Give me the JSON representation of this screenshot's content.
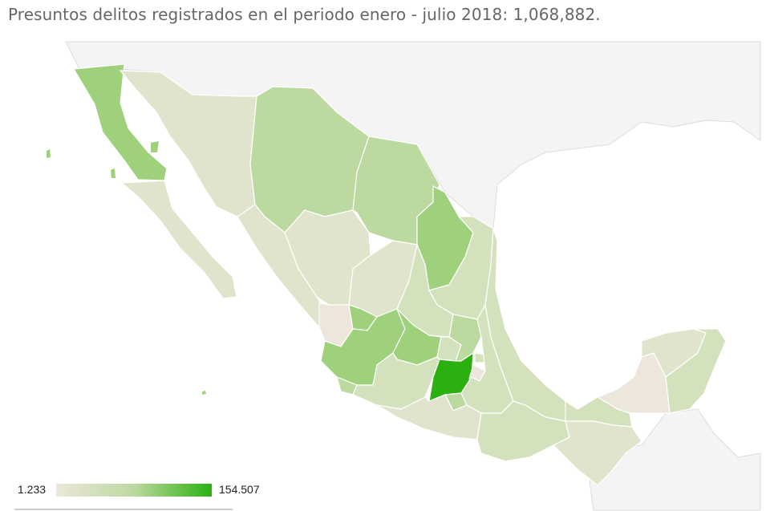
{
  "title": "Presuntos delitos registrados en el periodo enero - julio 2018: 1,068,882.",
  "legend": {
    "min_label": "1.233",
    "max_label": "154.507",
    "min_color": "#ece7da",
    "mid_color": "#bcd9a0",
    "max_color": "#2bb010"
  },
  "colors": {
    "land_background": "#f4f4f4",
    "border": "#ffffff",
    "strong": "#2bb010",
    "medium": "#9fd17c",
    "light_green": "#bcd9a0",
    "pale_green": "#d3e2bd",
    "beige_green": "#e0e4cc",
    "beige": "#ece7da"
  }
}
